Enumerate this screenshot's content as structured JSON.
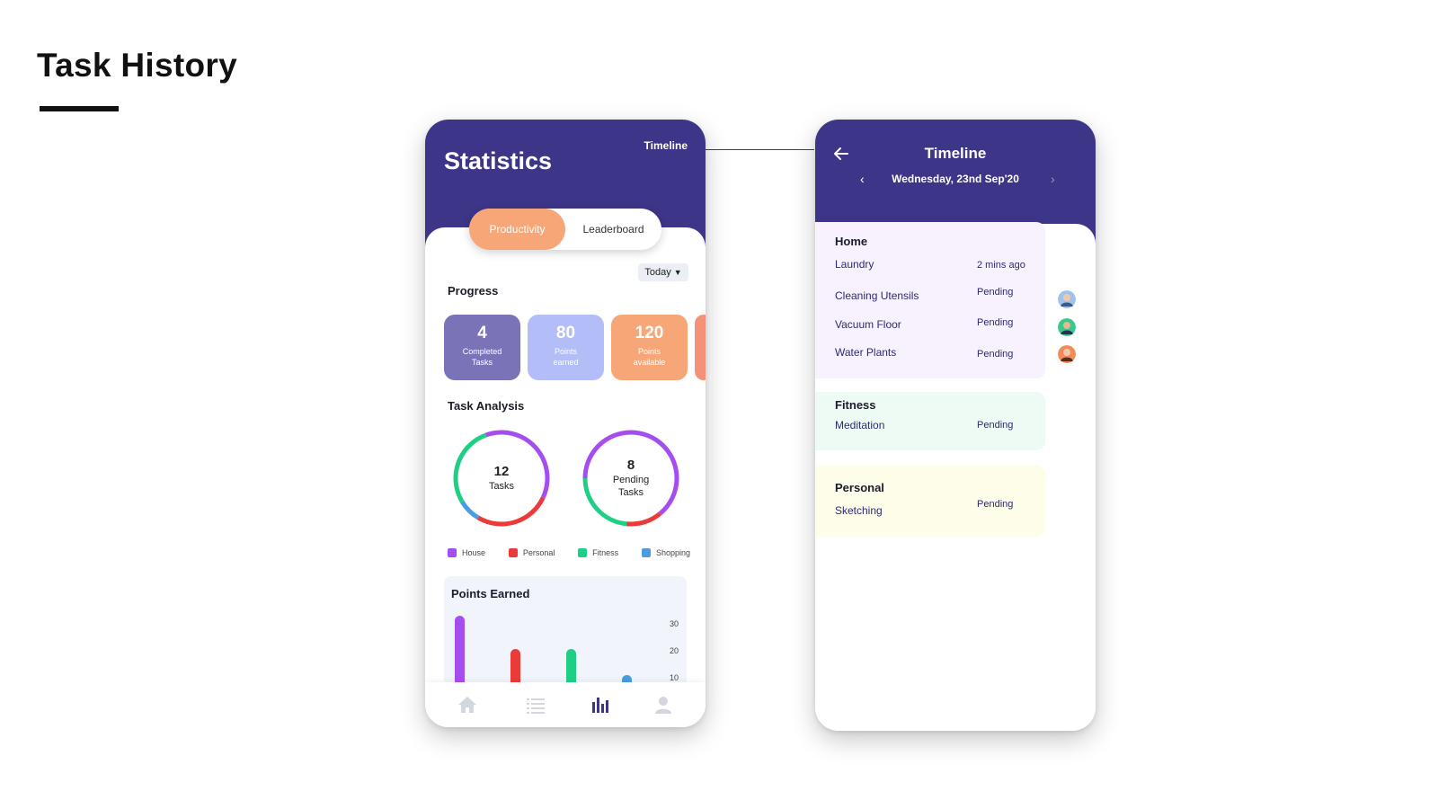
{
  "page": {
    "title": "Task History"
  },
  "statistics": {
    "title": "Statistics",
    "timeline_link": "Timeline",
    "tabs": {
      "active": "Productivity",
      "inactive": "Leaderboard"
    },
    "filter": {
      "label": "Today"
    },
    "progress": {
      "label": "Progress",
      "cards": [
        {
          "value": "4",
          "label_line1": "Completed",
          "label_line2": "Tasks",
          "color": "#7a73b8"
        },
        {
          "value": "80",
          "label_line1": "Points",
          "label_line2": "earned",
          "color": "#b3bdf8"
        },
        {
          "value": "120",
          "label_line1": "Points",
          "label_line2": "available",
          "color": "#f7a677"
        }
      ]
    },
    "task_analysis": {
      "label": "Task Analysis",
      "donuts": [
        {
          "value": "12",
          "label_line1": "Tasks",
          "label_line2": ""
        },
        {
          "value": "8",
          "label_line1": "Pending",
          "label_line2": "Tasks"
        }
      ],
      "legend": [
        {
          "name": "House",
          "color": "#a64df0"
        },
        {
          "name": "Personal",
          "color": "#ea3a3a"
        },
        {
          "name": "Fitness",
          "color": "#20cf86"
        },
        {
          "name": "Shopping",
          "color": "#4a9be0"
        }
      ]
    },
    "points_earned": {
      "label": "Points Earned",
      "y_ticks": [
        "30",
        "20",
        "10"
      ]
    },
    "nav": {
      "active": "stats"
    }
  },
  "timeline": {
    "title": "Timeline",
    "date": "Wednesday, 23nd Sep'20",
    "groups": [
      {
        "name": "Home",
        "tasks": [
          {
            "name": "Laundry",
            "status": "2 mins ago"
          },
          {
            "name": "Cleaning Utensils",
            "status": "Pending"
          },
          {
            "name": "Vacuum Floor",
            "status": "Pending"
          },
          {
            "name": "Water Plants",
            "status": "Pending"
          }
        ]
      },
      {
        "name": "Fitness",
        "tasks": [
          {
            "name": "Meditation",
            "status": "Pending"
          }
        ]
      },
      {
        "name": "Personal",
        "tasks": [
          {
            "name": "Sketching",
            "status": "Pending"
          }
        ]
      }
    ]
  },
  "colors": {
    "header_purple": "#3d3587",
    "accent_orange": "#f7a677"
  }
}
